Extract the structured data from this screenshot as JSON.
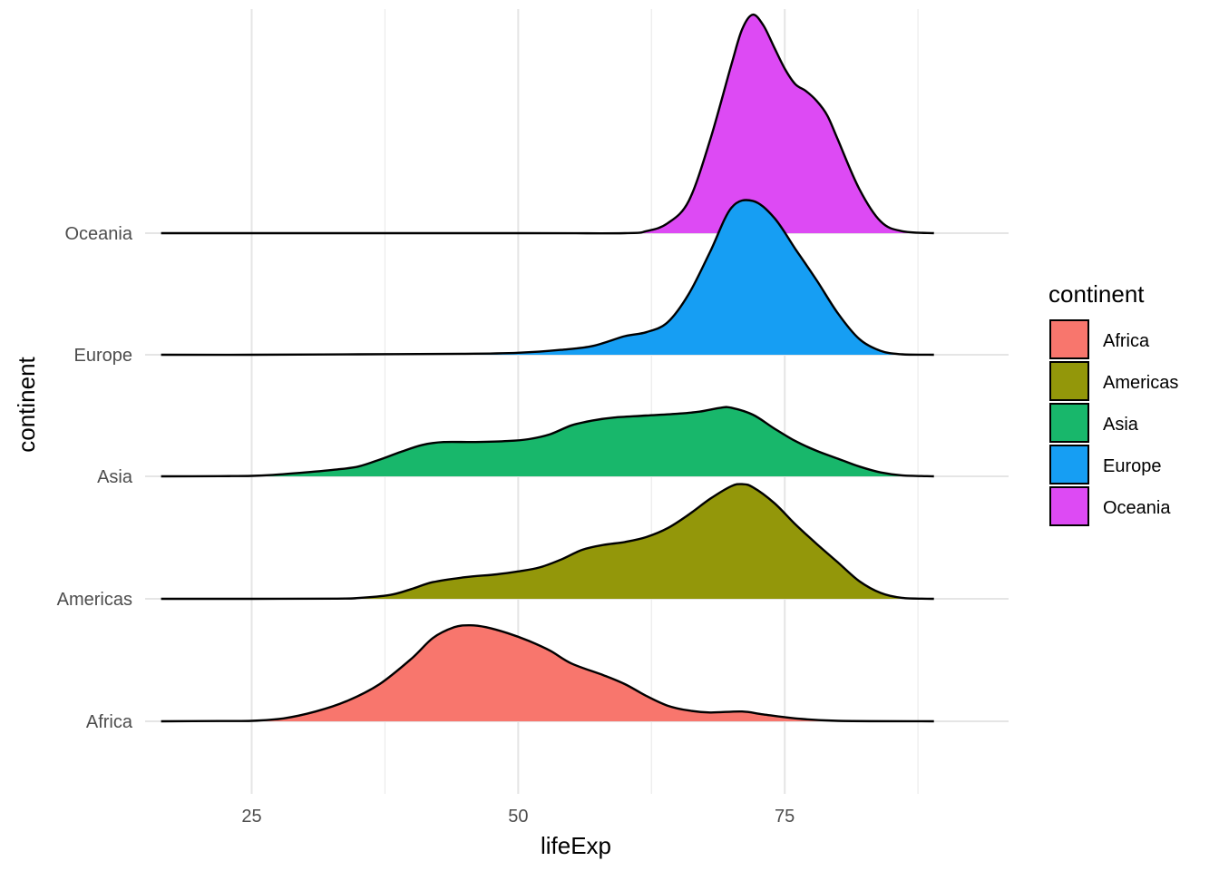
{
  "chart_data": {
    "type": "ridgeline",
    "xlabel": "lifeExp",
    "ylabel": "continent",
    "xlim": [
      15,
      96
    ],
    "x_ticks": [
      25,
      50,
      75
    ],
    "x_minor_ticks": [
      37.5,
      62.5,
      87.5
    ],
    "x_range_shown": [
      16.5,
      89
    ],
    "grid": true,
    "legend_title": "continent",
    "legend_position": "right",
    "categories": [
      "Africa",
      "Americas",
      "Asia",
      "Europe",
      "Oceania"
    ],
    "series": [
      {
        "name": "Africa",
        "color": "#F8766D",
        "density": [
          [
            16.5,
            0
          ],
          [
            22,
            0.003
          ],
          [
            25,
            0.005
          ],
          [
            28,
            0.03
          ],
          [
            31,
            0.1
          ],
          [
            34,
            0.21
          ],
          [
            37,
            0.38
          ],
          [
            40,
            0.64
          ],
          [
            42,
            0.85
          ],
          [
            44,
            0.96
          ],
          [
            45.5,
            0.98
          ],
          [
            47,
            0.96
          ],
          [
            49,
            0.9
          ],
          [
            51,
            0.82
          ],
          [
            53,
            0.72
          ],
          [
            55,
            0.59
          ],
          [
            58,
            0.47
          ],
          [
            60,
            0.38
          ],
          [
            62,
            0.26
          ],
          [
            64,
            0.16
          ],
          [
            66,
            0.11
          ],
          [
            68,
            0.09
          ],
          [
            71,
            0.1
          ],
          [
            73,
            0.07
          ],
          [
            76,
            0.03
          ],
          [
            80,
            0.005
          ],
          [
            89,
            0
          ]
        ]
      },
      {
        "name": "Americas",
        "color": "#93970A",
        "density": [
          [
            16.5,
            0
          ],
          [
            25,
            0
          ],
          [
            33,
            0.002
          ],
          [
            35,
            0.008
          ],
          [
            38,
            0.04
          ],
          [
            40,
            0.1
          ],
          [
            42,
            0.17
          ],
          [
            45,
            0.22
          ],
          [
            48,
            0.25
          ],
          [
            50,
            0.28
          ],
          [
            52,
            0.32
          ],
          [
            54,
            0.4
          ],
          [
            56,
            0.5
          ],
          [
            58,
            0.55
          ],
          [
            60,
            0.58
          ],
          [
            62,
            0.63
          ],
          [
            64,
            0.72
          ],
          [
            66,
            0.86
          ],
          [
            68,
            1.02
          ],
          [
            70,
            1.15
          ],
          [
            71,
            1.17
          ],
          [
            72,
            1.14
          ],
          [
            74,
            0.98
          ],
          [
            76,
            0.76
          ],
          [
            78,
            0.56
          ],
          [
            80,
            0.37
          ],
          [
            82,
            0.18
          ],
          [
            84,
            0.06
          ],
          [
            86,
            0.01
          ],
          [
            89,
            0
          ]
        ]
      },
      {
        "name": "Asia",
        "color": "#18B76B",
        "density": [
          [
            16.5,
            0
          ],
          [
            22,
            0.002
          ],
          [
            25,
            0.005
          ],
          [
            27,
            0.015
          ],
          [
            30,
            0.04
          ],
          [
            33,
            0.07
          ],
          [
            35,
            0.1
          ],
          [
            37,
            0.17
          ],
          [
            39,
            0.25
          ],
          [
            41,
            0.32
          ],
          [
            43,
            0.35
          ],
          [
            46,
            0.35
          ],
          [
            49,
            0.36
          ],
          [
            51,
            0.38
          ],
          [
            53,
            0.43
          ],
          [
            55,
            0.52
          ],
          [
            57,
            0.57
          ],
          [
            59,
            0.6
          ],
          [
            62,
            0.62
          ],
          [
            65,
            0.64
          ],
          [
            67,
            0.66
          ],
          [
            69,
            0.7
          ],
          [
            70,
            0.7
          ],
          [
            72,
            0.63
          ],
          [
            74,
            0.49
          ],
          [
            76,
            0.36
          ],
          [
            78,
            0.26
          ],
          [
            80,
            0.18
          ],
          [
            82,
            0.1
          ],
          [
            84,
            0.04
          ],
          [
            86,
            0.01
          ],
          [
            89,
            0
          ]
        ]
      },
      {
        "name": "Europe",
        "color": "#169EF3",
        "density": [
          [
            16.5,
            0
          ],
          [
            25,
            0
          ],
          [
            35,
            0.005
          ],
          [
            45,
            0.01
          ],
          [
            50,
            0.02
          ],
          [
            54,
            0.05
          ],
          [
            57,
            0.09
          ],
          [
            60,
            0.19
          ],
          [
            62,
            0.23
          ],
          [
            64,
            0.33
          ],
          [
            66,
            0.62
          ],
          [
            68,
            1.05
          ],
          [
            70,
            1.5
          ],
          [
            72,
            1.57
          ],
          [
            74,
            1.4
          ],
          [
            76,
            1.08
          ],
          [
            78,
            0.76
          ],
          [
            80,
            0.42
          ],
          [
            82,
            0.16
          ],
          [
            84,
            0.04
          ],
          [
            86,
            0.005
          ],
          [
            89,
            0
          ]
        ]
      },
      {
        "name": "Oceania",
        "color": "#DD4AF4",
        "density": [
          [
            16.5,
            0
          ],
          [
            50,
            0
          ],
          [
            60,
            0
          ],
          [
            62,
            0.02
          ],
          [
            64,
            0.1
          ],
          [
            66,
            0.33
          ],
          [
            68,
            0.95
          ],
          [
            70,
            1.72
          ],
          [
            71,
            2.08
          ],
          [
            72,
            2.23
          ],
          [
            73,
            2.12
          ],
          [
            74,
            1.9
          ],
          [
            75,
            1.68
          ],
          [
            76,
            1.52
          ],
          [
            77,
            1.45
          ],
          [
            78,
            1.35
          ],
          [
            79,
            1.2
          ],
          [
            80,
            0.95
          ],
          [
            82,
            0.45
          ],
          [
            84,
            0.12
          ],
          [
            86,
            0.02
          ],
          [
            89,
            0
          ]
        ]
      }
    ]
  }
}
